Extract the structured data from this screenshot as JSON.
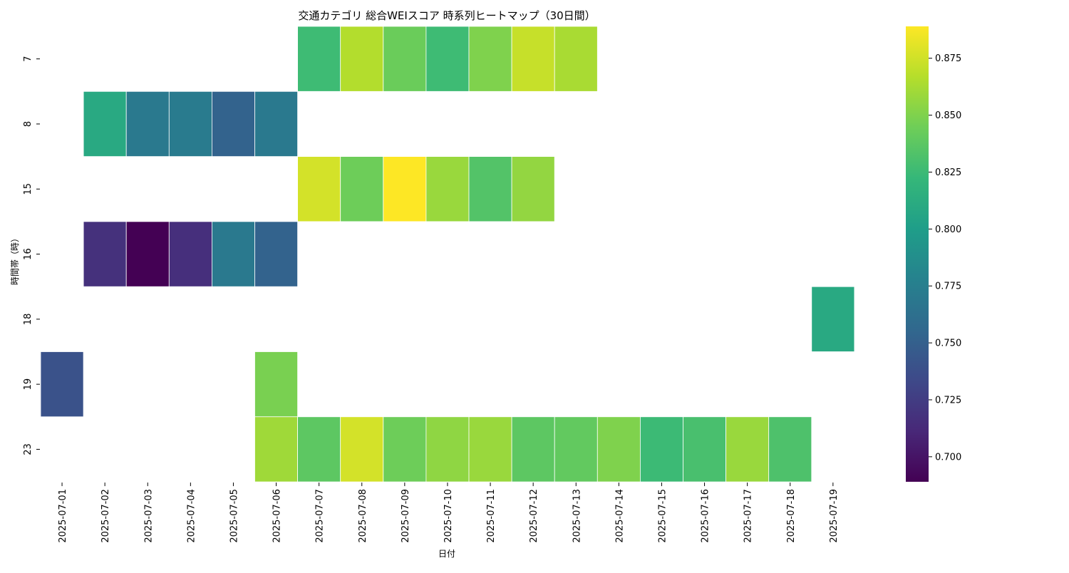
{
  "chart_data": {
    "type": "heatmap",
    "title": "交通カテゴリ 総合WEIスコア 時系列ヒートマップ（30日間）",
    "xlabel": "日付",
    "ylabel": "時間帯（時）",
    "x": [
      "2025-07-01",
      "2025-07-02",
      "2025-07-03",
      "2025-07-04",
      "2025-07-05",
      "2025-07-06",
      "2025-07-07",
      "2025-07-08",
      "2025-07-09",
      "2025-07-10",
      "2025-07-11",
      "2025-07-12",
      "2025-07-13",
      "2025-07-14",
      "2025-07-15",
      "2025-07-16",
      "2025-07-17",
      "2025-07-18",
      "2025-07-19"
    ],
    "y": [
      "7",
      "8",
      "15",
      "16",
      "18",
      "19",
      "23"
    ],
    "values": [
      [
        null,
        null,
        null,
        null,
        null,
        null,
        0.826,
        0.866,
        0.843,
        0.826,
        0.85,
        0.872,
        0.863,
        null,
        null,
        null,
        null,
        null,
        null
      ],
      [
        null,
        0.81,
        0.77,
        0.772,
        0.752,
        0.77,
        null,
        null,
        null,
        null,
        null,
        null,
        null,
        null,
        null,
        null,
        null,
        null,
        null
      ],
      [
        null,
        null,
        null,
        null,
        null,
        null,
        0.876,
        0.844,
        0.889,
        0.858,
        0.834,
        0.856,
        null,
        null,
        null,
        null,
        null,
        null,
        null
      ],
      [
        null,
        0.717,
        0.689,
        0.716,
        0.77,
        0.752,
        null,
        null,
        null,
        null,
        null,
        null,
        null,
        null,
        null,
        null,
        null,
        null,
        null
      ],
      [
        null,
        null,
        null,
        null,
        null,
        null,
        null,
        null,
        null,
        null,
        null,
        null,
        null,
        null,
        null,
        null,
        null,
        null,
        0.81
      ],
      [
        0.74,
        null,
        null,
        null,
        null,
        0.848,
        null,
        null,
        null,
        null,
        null,
        null,
        null,
        null,
        null,
        null,
        null,
        null,
        null
      ],
      [
        null,
        null,
        null,
        null,
        null,
        0.86,
        0.838,
        0.876,
        0.844,
        0.855,
        0.858,
        0.838,
        0.84,
        0.85,
        0.825,
        0.83,
        0.858,
        0.832,
        null
      ]
    ],
    "colormap": "viridis",
    "vmin": 0.689,
    "vmax": 0.889,
    "colorbar_ticks": [
      "0.700",
      "0.725",
      "0.750",
      "0.775",
      "0.800",
      "0.825",
      "0.850",
      "0.875"
    ],
    "colors": {
      "viridis": [
        "#440154",
        "#482878",
        "#3e4989",
        "#31688e",
        "#26828e",
        "#1f9e89",
        "#35b779",
        "#6ece58",
        "#b5de2b",
        "#fde725"
      ],
      "cell_border": "#ffffff"
    }
  }
}
